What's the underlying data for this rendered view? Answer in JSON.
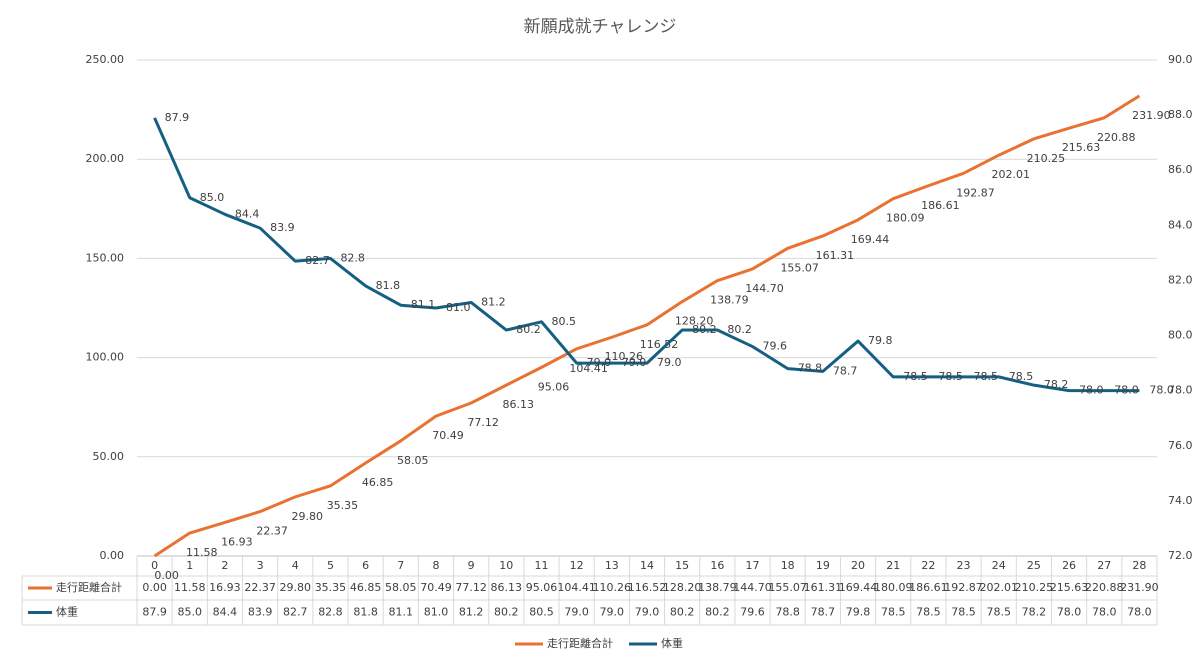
{
  "chart_data": {
    "type": "line",
    "title": "新願成就チャレンジ",
    "categories": [
      0,
      1,
      2,
      3,
      4,
      5,
      6,
      7,
      8,
      9,
      10,
      11,
      12,
      13,
      14,
      15,
      16,
      17,
      18,
      19,
      20,
      21,
      22,
      23,
      24,
      25,
      26,
      27,
      28
    ],
    "series": [
      {
        "name": "走行距離合計",
        "color": "#e97132",
        "axis": "y",
        "values": [
          0,
          11.58,
          16.93,
          22.37,
          29.8,
          35.35,
          46.85,
          58.05,
          70.49,
          77.12,
          86.13,
          95.06,
          104.41,
          110.26,
          116.52,
          128.2,
          138.79,
          144.7,
          155.07,
          161.31,
          169.44,
          180.09,
          186.61,
          192.87,
          202.01,
          210.25,
          215.63,
          220.88,
          231.9
        ],
        "value_labels": [
          "0.00",
          "11.58",
          "16.93",
          "22.37",
          "29.80",
          "35.35",
          "46.85",
          "58.05",
          "70.49",
          "77.12",
          "86.13",
          "95.06",
          "104.41",
          "110.26",
          "116.52",
          "128.20",
          "138.79",
          "144.70",
          "155.07",
          "161.31",
          "169.44",
          "180.09",
          "186.61",
          "192.87",
          "202.01",
          "210.25",
          "215.63",
          "220.88",
          "231.90"
        ]
      },
      {
        "name": "体重",
        "color": "#156082",
        "axis": "y2",
        "values": [
          87.9,
          85,
          84.4,
          83.9,
          82.7,
          82.8,
          81.8,
          81.1,
          81,
          81.2,
          80.2,
          80.5,
          79,
          79,
          79,
          80.2,
          80.2,
          79.6,
          78.8,
          78.7,
          79.8,
          78.5,
          78.5,
          78.5,
          78.5,
          78.2,
          78,
          78,
          78
        ],
        "value_labels": [
          "87.9",
          "85.0",
          "84.4",
          "83.9",
          "82.7",
          "82.8",
          "81.8",
          "81.1",
          "81.0",
          "81.2",
          "80.2",
          "80.5",
          "79.0",
          "79.0",
          "79.0",
          "80.2",
          "80.2",
          "79.6",
          "78.8",
          "78.7",
          "79.8",
          "78.5",
          "78.5",
          "78.5",
          "78.5",
          "78.2",
          "78.0",
          "78.0",
          "78.0"
        ]
      }
    ],
    "ylim": [
      0,
      250
    ],
    "yticks": [
      {
        "value": 0,
        "label": "0.00"
      },
      {
        "value": 50,
        "label": "50.00"
      },
      {
        "value": 100,
        "label": "100.00"
      },
      {
        "value": 150,
        "label": "150.00"
      },
      {
        "value": 200,
        "label": "200.00"
      },
      {
        "value": 250,
        "label": "250.00"
      }
    ],
    "y2lim": [
      72,
      90
    ],
    "y2ticks": [
      {
        "value": 72,
        "label": "72.0"
      },
      {
        "value": 74,
        "label": "74.0"
      },
      {
        "value": 76,
        "label": "76.0"
      },
      {
        "value": 78,
        "label": "78.0"
      },
      {
        "value": 80,
        "label": "80.0"
      },
      {
        "value": 82,
        "label": "82.0"
      },
      {
        "value": 84,
        "label": "84.0"
      },
      {
        "value": 86,
        "label": "86.0"
      },
      {
        "value": 88,
        "label": "88.0"
      },
      {
        "value": 90,
        "label": "90.0"
      }
    ],
    "grid": true,
    "legend": "bottom",
    "data_table": true
  }
}
